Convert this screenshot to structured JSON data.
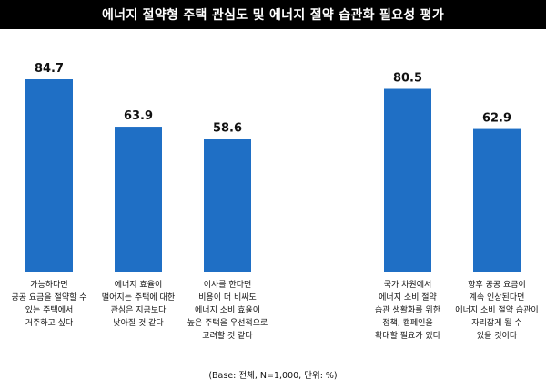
{
  "title": "에너지 절약형 주택 관심도 및 에너지 절약 습관화 필요성 평가",
  "footnote": "(Base: 전체, N=1,000, 단위: %)",
  "colors": {
    "bar": "#1f6fc5",
    "title_bg": "#000000",
    "title_text": "#ffffff"
  },
  "chart_data": {
    "type": "bar",
    "title": "에너지 절약형 주택 관심도 및 에너지 절약 습관화 필요성 평가",
    "categories": [
      "가능하다면\n공공 요금을 절약할 수\n있는 주택에서\n거주하고 싶다",
      "에너지 효율이\n떨어지는 주택에 대한\n관심은 지금보다\n낮아질 것 같다",
      "이사를 한다면\n비용이 더 비싸도\n에너지 소비 효율이\n높은 주택을 우선적으로\n고려할 것 같다",
      "국가 차원에서\n에너지 소비 절약\n습관 생활화를 위한\n정책, 캠페인을\n확대할 필요가 있다",
      "향후 공공 요금이\n계속 인상된다면\n에너지 소비 절약 습관이\n자리잡게 될 수\n있을 것이다"
    ],
    "values": [
      84.7,
      63.9,
      58.6,
      80.5,
      62.9
    ],
    "value_labels": [
      "84.7",
      "63.9",
      "58.6",
      "80.5",
      "62.9"
    ],
    "ylim": [
      0,
      100
    ],
    "xlabel": "",
    "ylabel": "",
    "grid": false
  }
}
